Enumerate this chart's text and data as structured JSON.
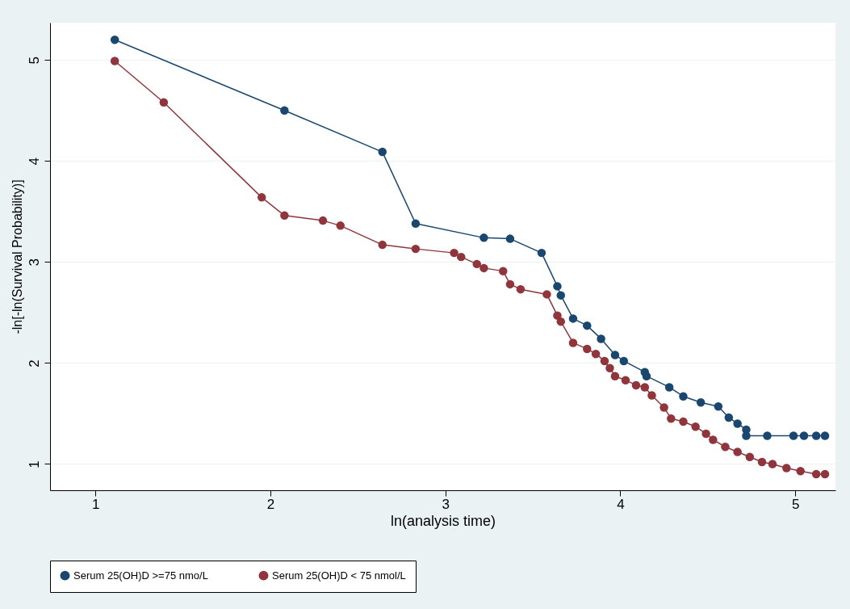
{
  "chart_data": {
    "type": "line",
    "xlabel": "ln(analysis time)",
    "ylabel": "-ln[-ln(Survival Probability)]",
    "xlim": [
      0.74,
      5.23
    ],
    "xticks": [
      1,
      2,
      3,
      4,
      5
    ],
    "ylim": [
      0.74,
      5.37
    ],
    "yticks": [
      1,
      2,
      3,
      4,
      5
    ],
    "grid": "y",
    "legend": "bottom",
    "marker": "circle",
    "line_style": "solid",
    "series": [
      {
        "name": "Serum 25(OH)D >=75 nmo/L",
        "color": "#1a476f",
        "x": [
          1.11,
          2.08,
          2.64,
          2.83,
          3.22,
          3.37,
          3.55,
          3.64,
          3.66,
          3.73,
          3.81,
          3.89,
          3.97,
          4.02,
          4.14,
          4.15,
          4.28,
          4.36,
          4.46,
          4.56,
          4.62,
          4.67,
          4.72,
          4.72,
          4.84,
          4.99,
          5.05,
          5.12,
          5.17
        ],
        "values": [
          5.2,
          4.5,
          4.09,
          3.38,
          3.24,
          3.23,
          3.09,
          2.76,
          2.67,
          2.44,
          2.37,
          2.24,
          2.08,
          2.02,
          1.91,
          1.87,
          1.76,
          1.67,
          1.61,
          1.57,
          1.46,
          1.4,
          1.34,
          1.28,
          1.28,
          1.28,
          1.28,
          1.28,
          1.28
        ]
      },
      {
        "name": "Serum 25(OH)D < 75 nmol/L",
        "color": "#90353b",
        "x": [
          1.11,
          1.39,
          1.95,
          2.08,
          2.3,
          2.4,
          2.64,
          2.83,
          3.05,
          3.09,
          3.18,
          3.22,
          3.33,
          3.37,
          3.43,
          3.58,
          3.64,
          3.66,
          3.73,
          3.81,
          3.86,
          3.91,
          3.94,
          3.97,
          4.03,
          4.09,
          4.14,
          4.18,
          4.25,
          4.29,
          4.36,
          4.43,
          4.49,
          4.53,
          4.6,
          4.67,
          4.74,
          4.81,
          4.87,
          4.95,
          5.03,
          5.12,
          5.17
        ],
        "values": [
          4.99,
          4.58,
          3.64,
          3.46,
          3.41,
          3.36,
          3.17,
          3.13,
          3.09,
          3.05,
          2.98,
          2.94,
          2.91,
          2.78,
          2.73,
          2.68,
          2.47,
          2.41,
          2.2,
          2.14,
          2.09,
          2.02,
          1.95,
          1.87,
          1.83,
          1.78,
          1.76,
          1.68,
          1.56,
          1.45,
          1.42,
          1.37,
          1.3,
          1.24,
          1.17,
          1.12,
          1.07,
          1.02,
          1.0,
          0.96,
          0.93,
          0.9,
          0.9
        ]
      }
    ]
  }
}
